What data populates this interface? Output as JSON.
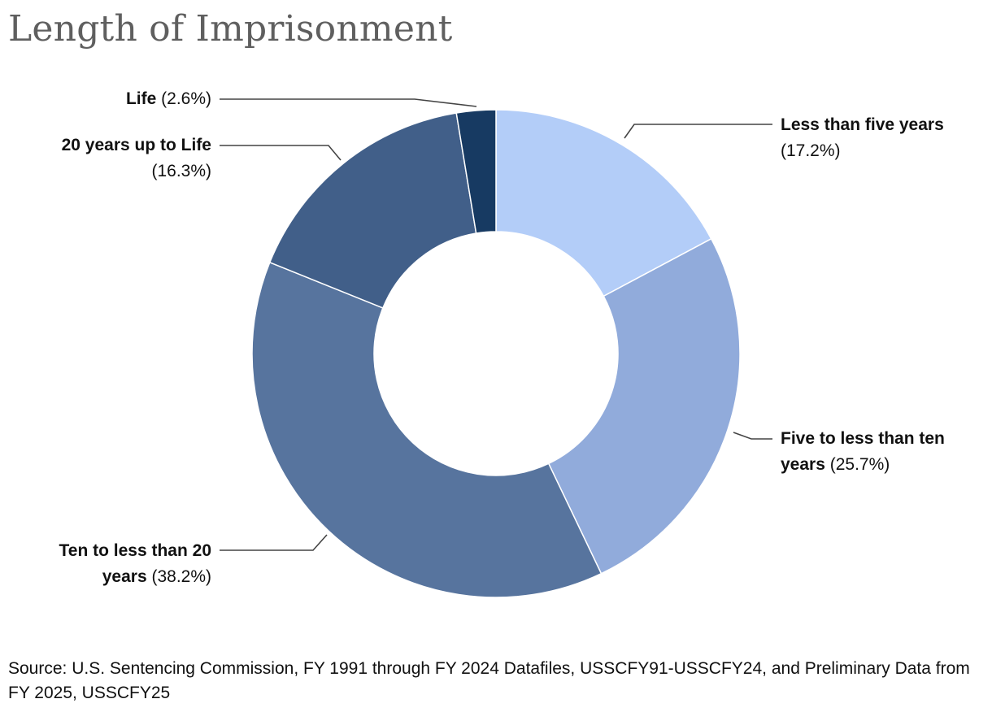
{
  "chart_data": {
    "type": "pie",
    "style": "donut",
    "title": "Length of Imprisonment",
    "slices": [
      {
        "label": "Less than five years",
        "value": 17.2,
        "value_label": "(17.2%)",
        "color": "#b3cdf8"
      },
      {
        "label": "Five to less than ten years",
        "value": 25.7,
        "value_label": "(25.7%)",
        "color": "#91abdb"
      },
      {
        "label": "Ten to less than 20 years",
        "value": 38.2,
        "value_label": "(38.2%)",
        "color": "#57749e"
      },
      {
        "label": "20 years up to Life",
        "value": 16.3,
        "value_label": "(16.3%)",
        "color": "#415f89"
      },
      {
        "label": "Life",
        "value": 2.6,
        "value_label": "(2.6%)",
        "color": "#173a62"
      }
    ],
    "start_angle": "12 o'clock",
    "direction": "clockwise",
    "legend": "none (callout labels)"
  },
  "labels": {
    "less_than_five": {
      "name": "Less than five years",
      "pct": "(17.2%)"
    },
    "five_to_ten": {
      "name_line1": "Five to less than ten",
      "name_line2": "years",
      "pct": "(25.7%)"
    },
    "ten_to_twenty": {
      "name_line1": "Ten to less than 20",
      "name_line2": "years",
      "pct": "(38.2%)"
    },
    "twenty_to_life": {
      "name": "20 years up to Life",
      "pct": "(16.3%)"
    },
    "life": {
      "name": "Life",
      "pct": "(2.6%)"
    }
  },
  "source": "Source: U.S. Sentencing Commission, FY 1991 through FY 2024 Datafiles, USSCFY91-USSCFY24, and Preliminary Data from FY 2025, USSCFY25"
}
